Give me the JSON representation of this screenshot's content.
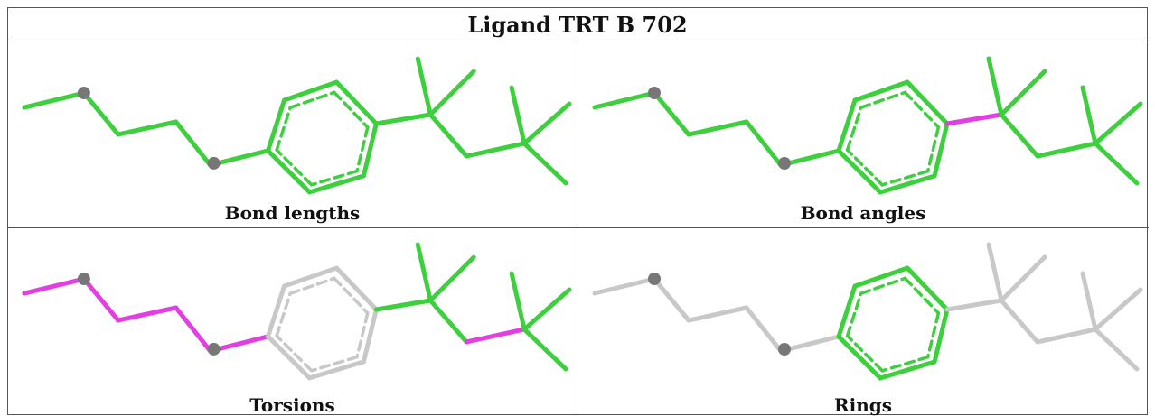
{
  "title": "Ligand TRT B 702",
  "colors": {
    "ok": "#3ecf3e",
    "flagged": "#e23ee2",
    "inactive": "#c8c8c8",
    "atom": "#777777"
  },
  "panels": [
    {
      "caption": "Bond lengths",
      "bond_colors": {
        "chain": "ok",
        "link": "ok",
        "ring": "ok",
        "q": "ok",
        "tail": "ok"
      }
    },
    {
      "caption": "Bond angles",
      "bond_colors": {
        "chain": "ok",
        "link": "ok",
        "ring": "ok",
        "q": "flagged",
        "tail": "ok"
      }
    },
    {
      "caption": "Torsions",
      "bond_colors": {
        "chain": "flagged",
        "link": "flagged",
        "ring": "inactive",
        "q": "ok",
        "tail": "flagged"
      }
    },
    {
      "caption": "Rings",
      "bond_colors": {
        "chain": "inactive",
        "link": "inactive",
        "ring": "ok",
        "q": "inactive",
        "tail": "inactive"
      }
    }
  ]
}
